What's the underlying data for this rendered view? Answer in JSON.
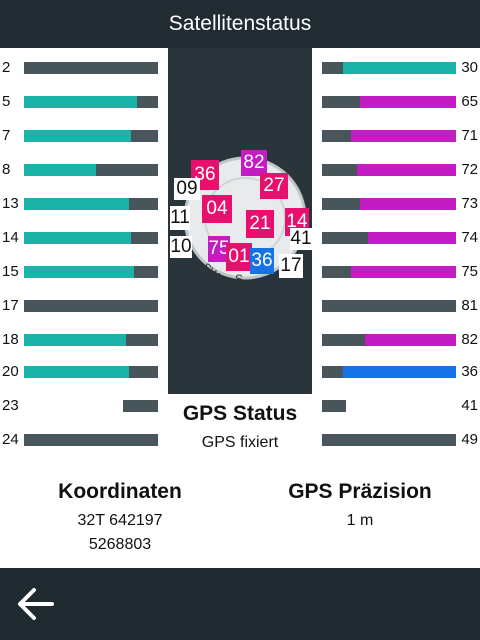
{
  "header": {
    "title": "Satellitenstatus"
  },
  "left_satellites": [
    {
      "id": "2",
      "signal": 0.0
    },
    {
      "id": "5",
      "signal": 0.84
    },
    {
      "id": "7",
      "signal": 0.8
    },
    {
      "id": "8",
      "signal": 0.54
    },
    {
      "id": "13",
      "signal": 0.78
    },
    {
      "id": "14",
      "signal": 0.8
    },
    {
      "id": "15",
      "signal": 0.82
    },
    {
      "id": "17",
      "signal": 0.0
    },
    {
      "id": "18",
      "signal": 0.76
    },
    {
      "id": "20",
      "signal": 0.78
    },
    {
      "id": "23",
      "signal": 0.0
    },
    {
      "id": "24",
      "signal": 0.0
    }
  ],
  "right_satellites": [
    {
      "id": "30",
      "signal": 0.84,
      "color": "#1bb3a8"
    },
    {
      "id": "65",
      "signal": 0.72,
      "color": "#c21cc2"
    },
    {
      "id": "71",
      "signal": 0.78,
      "color": "#c21cc2"
    },
    {
      "id": "72",
      "signal": 0.74,
      "color": "#c21cc2"
    },
    {
      "id": "73",
      "signal": 0.72,
      "color": "#c21cc2"
    },
    {
      "id": "74",
      "signal": 0.66,
      "color": "#c21cc2"
    },
    {
      "id": "75",
      "signal": 0.78,
      "color": "#c21cc2"
    },
    {
      "id": "81",
      "signal": 0.0,
      "color": "#c21cc2"
    },
    {
      "id": "82",
      "signal": 0.68,
      "color": "#c21cc2"
    },
    {
      "id": "36",
      "signal": 0.84,
      "color": "#1673e6"
    },
    {
      "id": "41",
      "signal": 0.0,
      "color": "#c21cc2"
    },
    {
      "id": "49",
      "signal": 0.0,
      "color": "#c21cc2"
    }
  ],
  "sky_labels": [
    {
      "text": "36",
      "color": "#e8106e"
    },
    {
      "text": "82",
      "color": "#c21cc2"
    },
    {
      "text": "27",
      "color": "#e8106e"
    },
    {
      "text": "09",
      "color": "#ffffff"
    },
    {
      "text": "04",
      "color": "#e8106e"
    },
    {
      "text": "11",
      "color": "#ffffff"
    },
    {
      "text": "21",
      "color": "#e8106e"
    },
    {
      "text": "14",
      "color": "#e8106e"
    },
    {
      "text": "10",
      "color": "#ffffff"
    },
    {
      "text": "75",
      "color": "#c21cc2"
    },
    {
      "text": "41",
      "color": "#ffffff"
    },
    {
      "text": "01",
      "color": "#e8106e"
    },
    {
      "text": "36",
      "color": "#1673e6"
    },
    {
      "text": "17",
      "color": "#ffffff"
    }
  ],
  "compass": {
    "southwest_label": "SW",
    "south_label": "S"
  },
  "gps_status": {
    "title": "GPS Status",
    "value": "GPS fixiert"
  },
  "coordinates": {
    "title": "Koordinaten",
    "line1": "32T 642197",
    "line2": "5268803"
  },
  "precision": {
    "title": "GPS Präzision",
    "value": "1 m"
  },
  "colors": {
    "teal": "#1bb3a8",
    "magenta": "#c21cc2",
    "blue": "#1673e6",
    "pink": "#e8106e",
    "header": "#212b32"
  },
  "footer": {
    "back_icon": "back-arrow-icon"
  }
}
